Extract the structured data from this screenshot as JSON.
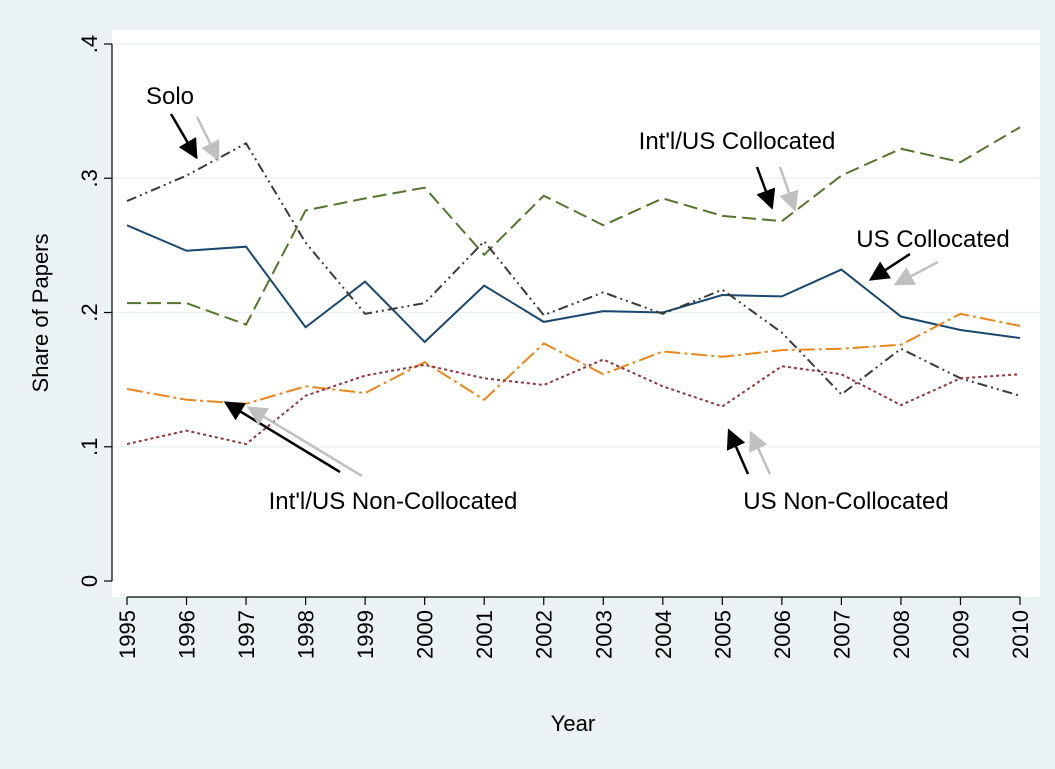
{
  "chart_data": {
    "type": "line",
    "xlabel": "Year",
    "ylabel": "Share of Papers",
    "x": [
      1995,
      1996,
      1997,
      1998,
      1999,
      2000,
      2001,
      2002,
      2003,
      2004,
      2005,
      2006,
      2007,
      2008,
      2009,
      2010
    ],
    "xlim": [
      1995,
      2010
    ],
    "xticks": [
      1995,
      1996,
      1997,
      1998,
      1999,
      2000,
      2001,
      2002,
      2003,
      2004,
      2005,
      2006,
      2007,
      2008,
      2009,
      2010
    ],
    "ylim": [
      0,
      0.4
    ],
    "yticks": [
      0,
      {
        "value": 0.1,
        "label": ".1"
      },
      {
        "value": 0.2,
        "label": ".2"
      },
      {
        "value": 0.3,
        "label": ".3"
      },
      {
        "value": 0.4,
        "label": ".4"
      }
    ],
    "grid": true,
    "series": [
      {
        "name": "US Collocated",
        "color": "#1a476f",
        "values": [
          0.265,
          0.246,
          0.249,
          0.189,
          0.223,
          0.178,
          0.22,
          0.193,
          0.201,
          0.2,
          0.213,
          0.212,
          0.232,
          0.197,
          0.187,
          0.181
        ]
      },
      {
        "name": "Int'l/US Collocated",
        "color": "#55752f",
        "values": [
          0.207,
          0.207,
          0.191,
          0.276,
          0.285,
          0.293,
          0.243,
          0.287,
          0.265,
          0.285,
          0.272,
          0.268,
          0.302,
          0.322,
          0.312,
          0.338
        ]
      },
      {
        "name": "Solo",
        "color": "#3a3a3a",
        "values": [
          0.283,
          0.302,
          0.326,
          0.252,
          0.199,
          0.207,
          0.253,
          0.198,
          0.215,
          0.199,
          0.217,
          0.185,
          0.139,
          0.173,
          0.151,
          0.138
        ]
      },
      {
        "name": "Int'l/US Non-Collocated",
        "color": "#e8871e",
        "values": [
          0.143,
          0.135,
          0.132,
          0.145,
          0.14,
          0.163,
          0.135,
          0.177,
          0.154,
          0.171,
          0.167,
          0.172,
          0.173,
          0.176,
          0.199,
          0.19
        ]
      },
      {
        "name": "US Non-Collocated",
        "color": "#90353b",
        "values": [
          0.102,
          0.112,
          0.102,
          0.138,
          0.153,
          0.161,
          0.151,
          0.146,
          0.165,
          0.145,
          0.13,
          0.16,
          0.154,
          0.131,
          0.151,
          0.154
        ]
      }
    ]
  }
}
